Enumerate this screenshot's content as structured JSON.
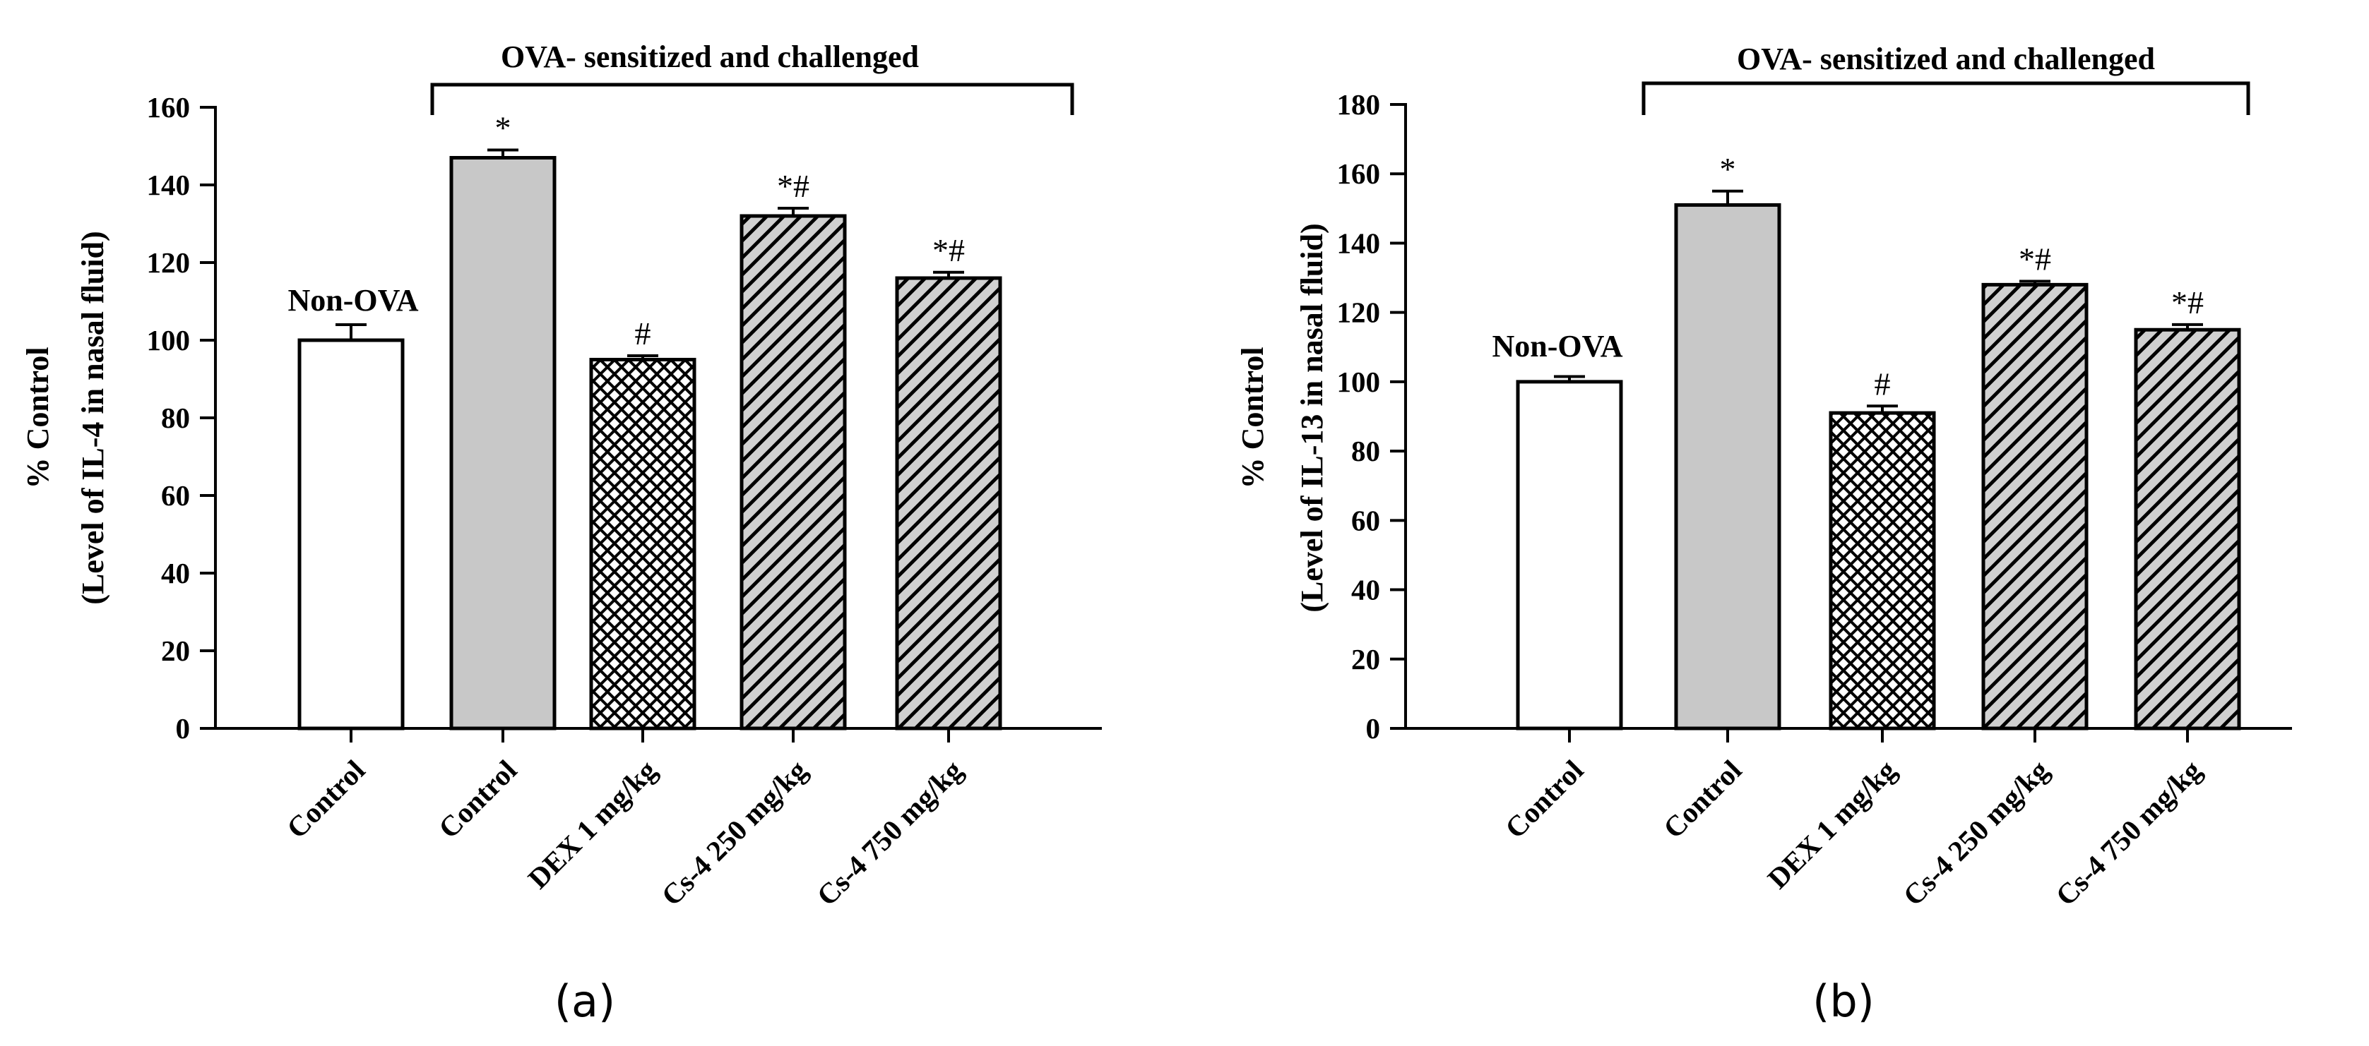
{
  "chart_data": [
    {
      "type": "bar",
      "panel_label": "(a)",
      "ylabel_line1": "% Control",
      "ylabel_line2": "(Level of IL-4 in nasal fluid)",
      "ylim": [
        0,
        160
      ],
      "yticks": [
        0,
        20,
        40,
        60,
        80,
        100,
        120,
        140,
        160
      ],
      "categories": [
        "Control",
        "Control",
        "DEX 1 mg/kg",
        "Cs-4 250 mg/kg",
        "Cs-4 750 mg/kg"
      ],
      "values": [
        100,
        147,
        95,
        132,
        116
      ],
      "errors": [
        4,
        2,
        1,
        2,
        1.5
      ],
      "annotations": [
        "",
        "*",
        "#",
        "*#",
        "*#"
      ],
      "fills": [
        "white",
        "gray",
        "crosshatch",
        "hatch",
        "hatch"
      ],
      "group_label": "Non-OVA",
      "bracket_label": "OVA- sensitized and challenged"
    },
    {
      "type": "bar",
      "panel_label": "(b)",
      "ylabel_line1": "% Control",
      "ylabel_line2": "(Level of IL-13 in nasal fluid)",
      "ylim": [
        0,
        180
      ],
      "yticks": [
        0,
        20,
        40,
        60,
        80,
        100,
        120,
        140,
        160,
        180
      ],
      "categories": [
        "Control",
        "Control",
        "DEX 1 mg/kg",
        "Cs-4 250 mg/kg",
        "Cs-4 750 mg/kg"
      ],
      "values": [
        100,
        151,
        91,
        128,
        115
      ],
      "errors": [
        1.5,
        4,
        2,
        1,
        1.5
      ],
      "annotations": [
        "",
        "*",
        "#",
        "*#",
        "*#"
      ],
      "fills": [
        "white",
        "gray",
        "crosshatch",
        "hatch",
        "hatch"
      ],
      "group_label": "Non-OVA",
      "bracket_label": "OVA- sensitized and challenged"
    }
  ],
  "colors": {
    "axis": "#000000",
    "gray_fill": "#c8c8c8",
    "hatch_bg": "#d0d0d0",
    "white_fill": "#ffffff"
  }
}
